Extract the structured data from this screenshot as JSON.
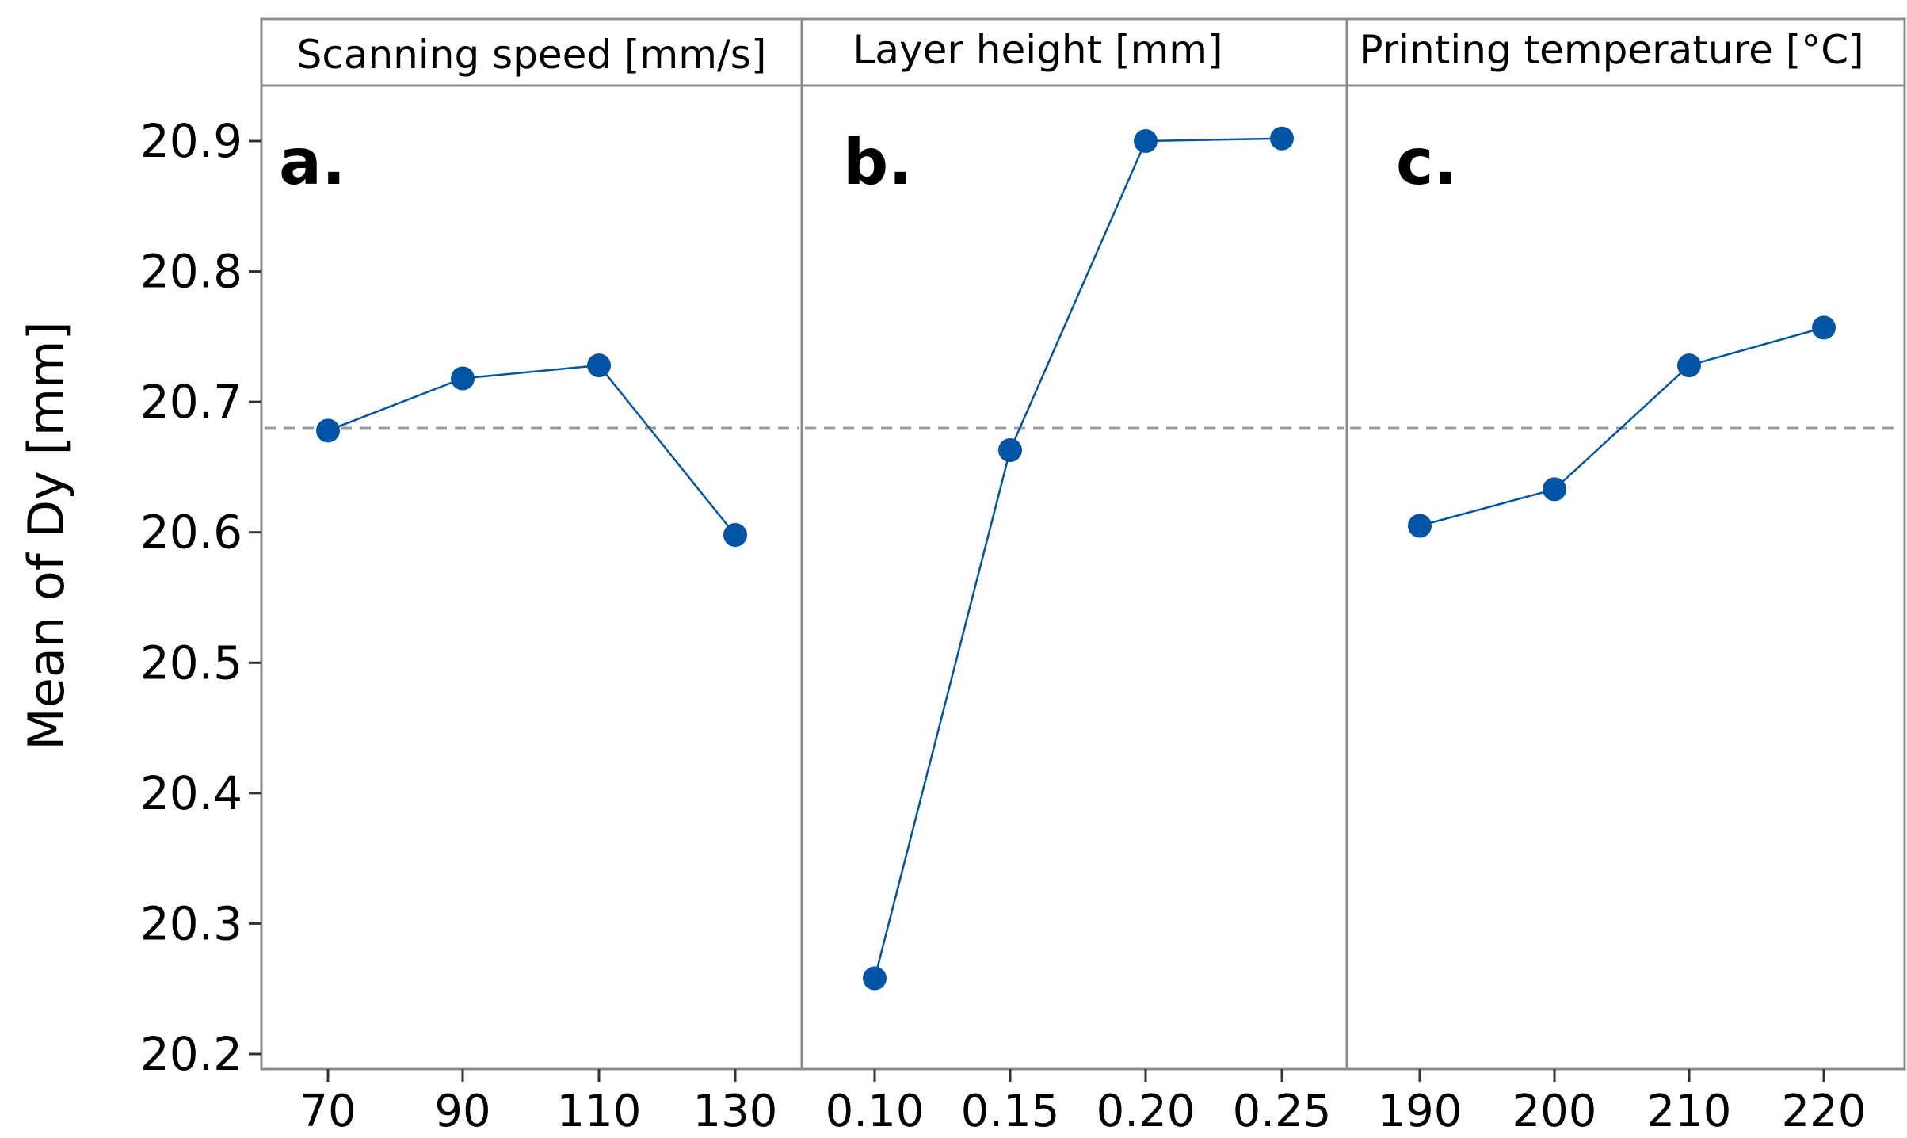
{
  "chart_data": {
    "type": "line",
    "ylabel": "Mean of Dy [mm]",
    "ylim": [
      20.2,
      20.95
    ],
    "yticks": [
      "20.2",
      "20.3",
      "20.4",
      "20.5",
      "20.6",
      "20.7",
      "20.8",
      "20.9"
    ],
    "reference_mean": 20.68,
    "grid": false,
    "panels": [
      {
        "panel_label": "a.",
        "header": "Scanning speed [mm/s]",
        "categories": [
          "70",
          "90",
          "110",
          "130"
        ],
        "values": [
          20.678,
          20.718,
          20.728,
          20.598
        ]
      },
      {
        "panel_label": "b.",
        "header": "Layer height [mm]",
        "categories": [
          "0.10",
          "0.15",
          "0.20",
          "0.25"
        ],
        "values": [
          20.258,
          20.663,
          20.9,
          20.902
        ]
      },
      {
        "panel_label": "c.",
        "header": "Printing temperature [°C]",
        "categories": [
          "190",
          "200",
          "210",
          "220"
        ],
        "values": [
          20.605,
          20.633,
          20.728,
          20.757
        ]
      }
    ],
    "colors": {
      "series": "#0054a6",
      "frame": "#8c8c8c",
      "reference": "#9a9a9a"
    }
  }
}
